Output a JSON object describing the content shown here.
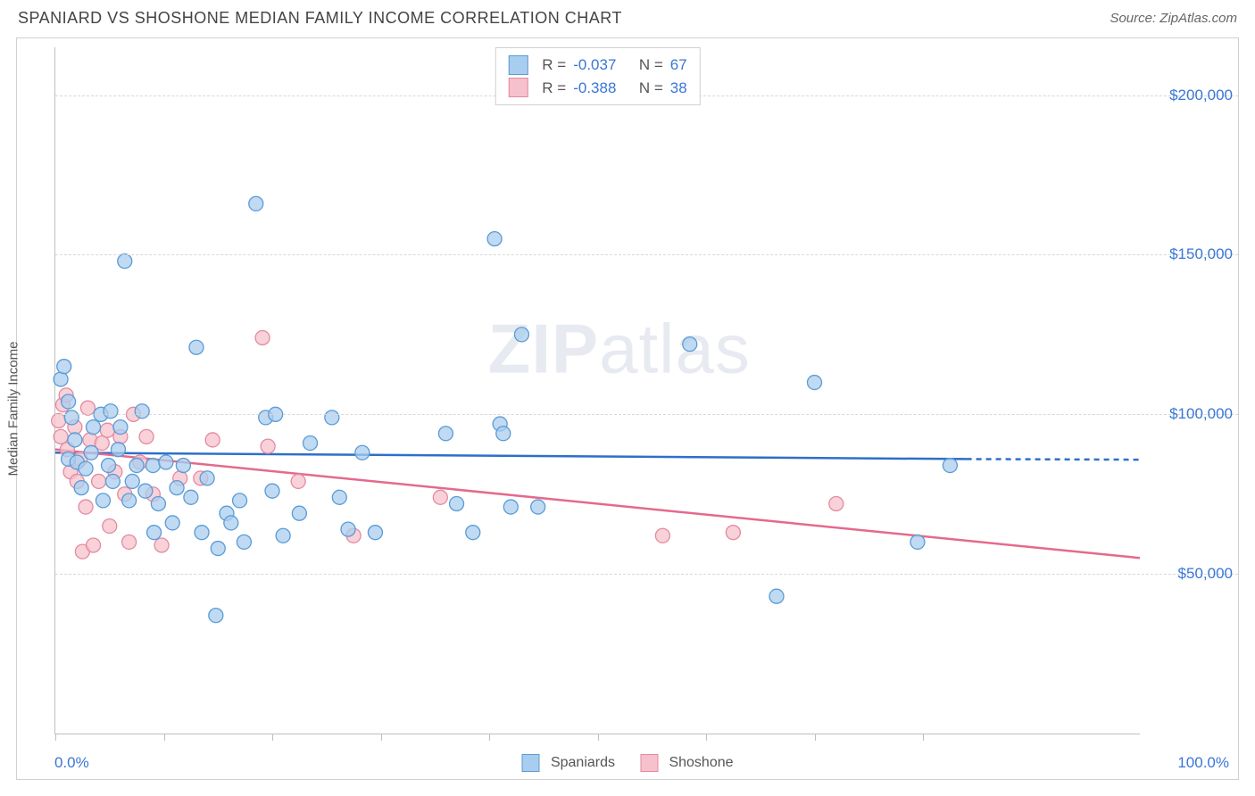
{
  "title": "SPANIARD VS SHOSHONE MEDIAN FAMILY INCOME CORRELATION CHART",
  "source": "Source: ZipAtlas.com",
  "ylabel": "Median Family Income",
  "watermark": "ZIPatlas",
  "chart": {
    "type": "scatter",
    "background_color": "#ffffff",
    "grid_color": "#d8d8d8",
    "border_color": "#d0d0d0",
    "axis_color": "#bfbfbf",
    "xlim": [
      0,
      100
    ],
    "ylim": [
      0,
      215000
    ],
    "xtick_positions": [
      0,
      10,
      20,
      30,
      40,
      50,
      60,
      70,
      80
    ],
    "xtick_labels": {
      "left": "0.0%",
      "right": "100.0%"
    },
    "ytick_positions": [
      50000,
      100000,
      150000,
      200000
    ],
    "ytick_labels": [
      "$50,000",
      "$100,000",
      "$150,000",
      "$200,000"
    ],
    "label_color": "#3a76d6",
    "label_fontsize": 17,
    "title_fontsize": 18,
    "title_color": "#444444"
  },
  "series": [
    {
      "name": "Spaniards",
      "marker_fill": "#a9cdee",
      "marker_stroke": "#5b9bd5",
      "marker_radius": 8,
      "line_color": "#2e6fc9",
      "line_width": 2.5,
      "R": "-0.037",
      "N": "67",
      "trend": {
        "x1": 0,
        "y1": 88000,
        "x2": 84,
        "y2": 86000,
        "extend_x": 100,
        "extend_y": 85800
      },
      "points": [
        [
          0.5,
          111000
        ],
        [
          0.8,
          115000
        ],
        [
          1.2,
          104000
        ],
        [
          1.2,
          86000
        ],
        [
          1.5,
          99000
        ],
        [
          1.8,
          92000
        ],
        [
          2.0,
          85000
        ],
        [
          2.4,
          77000
        ],
        [
          2.8,
          83000
        ],
        [
          3.3,
          88000
        ],
        [
          3.5,
          96000
        ],
        [
          4.2,
          100000
        ],
        [
          4.4,
          73000
        ],
        [
          4.9,
          84000
        ],
        [
          5.1,
          101000
        ],
        [
          5.3,
          79000
        ],
        [
          5.8,
          89000
        ],
        [
          6.0,
          96000
        ],
        [
          6.4,
          148000
        ],
        [
          6.8,
          73000
        ],
        [
          7.1,
          79000
        ],
        [
          7.5,
          84000
        ],
        [
          8.0,
          101000
        ],
        [
          8.3,
          76000
        ],
        [
          9.0,
          84000
        ],
        [
          9.1,
          63000
        ],
        [
          9.5,
          72000
        ],
        [
          10.2,
          85000
        ],
        [
          10.8,
          66000
        ],
        [
          11.2,
          77000
        ],
        [
          11.8,
          84000
        ],
        [
          12.5,
          74000
        ],
        [
          13.0,
          121000
        ],
        [
          13.5,
          63000
        ],
        [
          14.0,
          80000
        ],
        [
          14.8,
          37000
        ],
        [
          15.0,
          58000
        ],
        [
          15.8,
          69000
        ],
        [
          16.2,
          66000
        ],
        [
          17.0,
          73000
        ],
        [
          17.4,
          60000
        ],
        [
          18.5,
          166000
        ],
        [
          19.4,
          99000
        ],
        [
          20.0,
          76000
        ],
        [
          20.3,
          100000
        ],
        [
          21.0,
          62000
        ],
        [
          22.5,
          69000
        ],
        [
          23.5,
          91000
        ],
        [
          25.5,
          99000
        ],
        [
          26.2,
          74000
        ],
        [
          27.0,
          64000
        ],
        [
          28.3,
          88000
        ],
        [
          29.5,
          63000
        ],
        [
          36.0,
          94000
        ],
        [
          37.0,
          72000
        ],
        [
          38.5,
          63000
        ],
        [
          40.5,
          155000
        ],
        [
          41.0,
          97000
        ],
        [
          41.3,
          94000
        ],
        [
          42.0,
          71000
        ],
        [
          43.0,
          125000
        ],
        [
          44.5,
          71000
        ],
        [
          58.5,
          122000
        ],
        [
          66.5,
          43000
        ],
        [
          70.0,
          110000
        ],
        [
          79.5,
          60000
        ],
        [
          82.5,
          84000
        ]
      ]
    },
    {
      "name": "Shoshone",
      "marker_fill": "#f6c1cc",
      "marker_stroke": "#e48aa0",
      "marker_radius": 8,
      "line_color": "#e46a8c",
      "line_width": 2.5,
      "R": "-0.388",
      "N": "38",
      "trend": {
        "x1": 0,
        "y1": 89000,
        "x2": 100,
        "y2": 55000
      },
      "points": [
        [
          0.3,
          98000
        ],
        [
          0.5,
          93000
        ],
        [
          0.7,
          103000
        ],
        [
          1.0,
          106000
        ],
        [
          1.1,
          89000
        ],
        [
          1.4,
          82000
        ],
        [
          1.8,
          96000
        ],
        [
          2.0,
          79000
        ],
        [
          2.3,
          86000
        ],
        [
          2.5,
          57000
        ],
        [
          2.8,
          71000
        ],
        [
          3.0,
          102000
        ],
        [
          3.2,
          92000
        ],
        [
          3.5,
          59000
        ],
        [
          4.0,
          79000
        ],
        [
          4.3,
          91000
        ],
        [
          4.8,
          95000
        ],
        [
          5.0,
          65000
        ],
        [
          5.5,
          82000
        ],
        [
          6.0,
          93000
        ],
        [
          6.4,
          75000
        ],
        [
          6.8,
          60000
        ],
        [
          7.2,
          100000
        ],
        [
          7.8,
          85000
        ],
        [
          8.4,
          93000
        ],
        [
          9.0,
          75000
        ],
        [
          9.8,
          59000
        ],
        [
          11.5,
          80000
        ],
        [
          13.4,
          80000
        ],
        [
          14.5,
          92000
        ],
        [
          19.1,
          124000
        ],
        [
          19.6,
          90000
        ],
        [
          22.4,
          79000
        ],
        [
          27.5,
          62000
        ],
        [
          35.5,
          74000
        ],
        [
          56.0,
          62000
        ],
        [
          62.5,
          63000
        ],
        [
          72.0,
          72000
        ]
      ]
    }
  ],
  "legend_top": {
    "R_label": "R =",
    "N_label": "N ="
  },
  "legend_bottom": {
    "items": [
      "Spaniards",
      "Shoshone"
    ]
  }
}
